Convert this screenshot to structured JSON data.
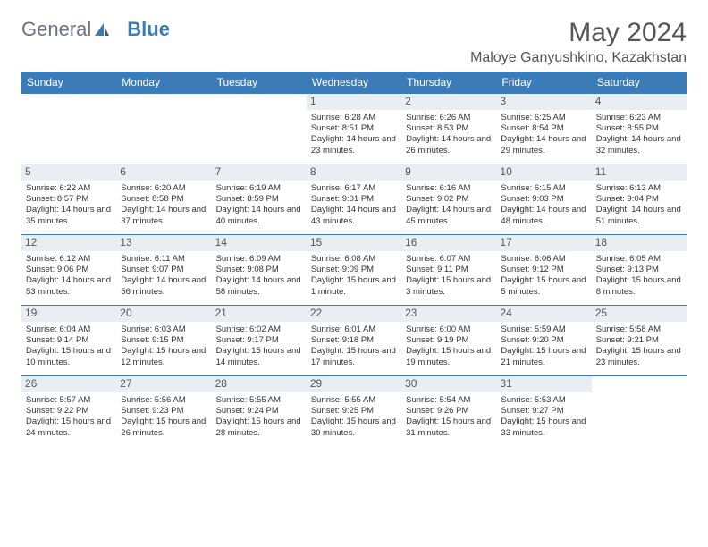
{
  "logo": {
    "part1": "General",
    "part2": "Blue"
  },
  "title": "May 2024",
  "location": "Maloye Ganyushkino, Kazakhstan",
  "colors": {
    "brand": "#3a7bb8",
    "headerBg": "#3a7bb8",
    "dayBg": "#e9eef2",
    "text": "#333333",
    "muted": "#6b7280"
  },
  "weekdays": [
    "Sunday",
    "Monday",
    "Tuesday",
    "Wednesday",
    "Thursday",
    "Friday",
    "Saturday"
  ],
  "weeks": [
    [
      null,
      null,
      null,
      {
        "n": "1",
        "sr": "Sunrise: 6:28 AM",
        "ss": "Sunset: 8:51 PM",
        "dl": "Daylight: 14 hours and 23 minutes."
      },
      {
        "n": "2",
        "sr": "Sunrise: 6:26 AM",
        "ss": "Sunset: 8:53 PM",
        "dl": "Daylight: 14 hours and 26 minutes."
      },
      {
        "n": "3",
        "sr": "Sunrise: 6:25 AM",
        "ss": "Sunset: 8:54 PM",
        "dl": "Daylight: 14 hours and 29 minutes."
      },
      {
        "n": "4",
        "sr": "Sunrise: 6:23 AM",
        "ss": "Sunset: 8:55 PM",
        "dl": "Daylight: 14 hours and 32 minutes."
      }
    ],
    [
      {
        "n": "5",
        "sr": "Sunrise: 6:22 AM",
        "ss": "Sunset: 8:57 PM",
        "dl": "Daylight: 14 hours and 35 minutes."
      },
      {
        "n": "6",
        "sr": "Sunrise: 6:20 AM",
        "ss": "Sunset: 8:58 PM",
        "dl": "Daylight: 14 hours and 37 minutes."
      },
      {
        "n": "7",
        "sr": "Sunrise: 6:19 AM",
        "ss": "Sunset: 8:59 PM",
        "dl": "Daylight: 14 hours and 40 minutes."
      },
      {
        "n": "8",
        "sr": "Sunrise: 6:17 AM",
        "ss": "Sunset: 9:01 PM",
        "dl": "Daylight: 14 hours and 43 minutes."
      },
      {
        "n": "9",
        "sr": "Sunrise: 6:16 AM",
        "ss": "Sunset: 9:02 PM",
        "dl": "Daylight: 14 hours and 45 minutes."
      },
      {
        "n": "10",
        "sr": "Sunrise: 6:15 AM",
        "ss": "Sunset: 9:03 PM",
        "dl": "Daylight: 14 hours and 48 minutes."
      },
      {
        "n": "11",
        "sr": "Sunrise: 6:13 AM",
        "ss": "Sunset: 9:04 PM",
        "dl": "Daylight: 14 hours and 51 minutes."
      }
    ],
    [
      {
        "n": "12",
        "sr": "Sunrise: 6:12 AM",
        "ss": "Sunset: 9:06 PM",
        "dl": "Daylight: 14 hours and 53 minutes."
      },
      {
        "n": "13",
        "sr": "Sunrise: 6:11 AM",
        "ss": "Sunset: 9:07 PM",
        "dl": "Daylight: 14 hours and 56 minutes."
      },
      {
        "n": "14",
        "sr": "Sunrise: 6:09 AM",
        "ss": "Sunset: 9:08 PM",
        "dl": "Daylight: 14 hours and 58 minutes."
      },
      {
        "n": "15",
        "sr": "Sunrise: 6:08 AM",
        "ss": "Sunset: 9:09 PM",
        "dl": "Daylight: 15 hours and 1 minute."
      },
      {
        "n": "16",
        "sr": "Sunrise: 6:07 AM",
        "ss": "Sunset: 9:11 PM",
        "dl": "Daylight: 15 hours and 3 minutes."
      },
      {
        "n": "17",
        "sr": "Sunrise: 6:06 AM",
        "ss": "Sunset: 9:12 PM",
        "dl": "Daylight: 15 hours and 5 minutes."
      },
      {
        "n": "18",
        "sr": "Sunrise: 6:05 AM",
        "ss": "Sunset: 9:13 PM",
        "dl": "Daylight: 15 hours and 8 minutes."
      }
    ],
    [
      {
        "n": "19",
        "sr": "Sunrise: 6:04 AM",
        "ss": "Sunset: 9:14 PM",
        "dl": "Daylight: 15 hours and 10 minutes."
      },
      {
        "n": "20",
        "sr": "Sunrise: 6:03 AM",
        "ss": "Sunset: 9:15 PM",
        "dl": "Daylight: 15 hours and 12 minutes."
      },
      {
        "n": "21",
        "sr": "Sunrise: 6:02 AM",
        "ss": "Sunset: 9:17 PM",
        "dl": "Daylight: 15 hours and 14 minutes."
      },
      {
        "n": "22",
        "sr": "Sunrise: 6:01 AM",
        "ss": "Sunset: 9:18 PM",
        "dl": "Daylight: 15 hours and 17 minutes."
      },
      {
        "n": "23",
        "sr": "Sunrise: 6:00 AM",
        "ss": "Sunset: 9:19 PM",
        "dl": "Daylight: 15 hours and 19 minutes."
      },
      {
        "n": "24",
        "sr": "Sunrise: 5:59 AM",
        "ss": "Sunset: 9:20 PM",
        "dl": "Daylight: 15 hours and 21 minutes."
      },
      {
        "n": "25",
        "sr": "Sunrise: 5:58 AM",
        "ss": "Sunset: 9:21 PM",
        "dl": "Daylight: 15 hours and 23 minutes."
      }
    ],
    [
      {
        "n": "26",
        "sr": "Sunrise: 5:57 AM",
        "ss": "Sunset: 9:22 PM",
        "dl": "Daylight: 15 hours and 24 minutes."
      },
      {
        "n": "27",
        "sr": "Sunrise: 5:56 AM",
        "ss": "Sunset: 9:23 PM",
        "dl": "Daylight: 15 hours and 26 minutes."
      },
      {
        "n": "28",
        "sr": "Sunrise: 5:55 AM",
        "ss": "Sunset: 9:24 PM",
        "dl": "Daylight: 15 hours and 28 minutes."
      },
      {
        "n": "29",
        "sr": "Sunrise: 5:55 AM",
        "ss": "Sunset: 9:25 PM",
        "dl": "Daylight: 15 hours and 30 minutes."
      },
      {
        "n": "30",
        "sr": "Sunrise: 5:54 AM",
        "ss": "Sunset: 9:26 PM",
        "dl": "Daylight: 15 hours and 31 minutes."
      },
      {
        "n": "31",
        "sr": "Sunrise: 5:53 AM",
        "ss": "Sunset: 9:27 PM",
        "dl": "Daylight: 15 hours and 33 minutes."
      },
      null
    ]
  ]
}
